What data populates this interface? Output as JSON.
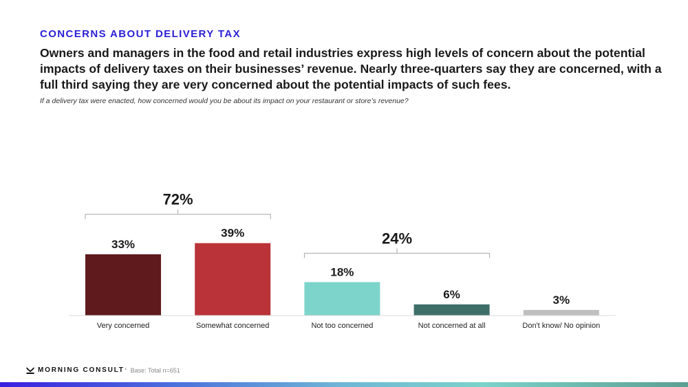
{
  "kicker": "CONCERNS ABOUT DELIVERY TAX",
  "headline": "Owners and managers in the food and retail industries express high levels of concern about the potential impacts of delivery taxes on their businesses’ revenue. Nearly three-quarters say they are concerned, with a full third saying they are very concerned about the potential impacts of such fees.",
  "question": "If a delivery tax were enacted, how concerned would you be about its impact on your restaurant or store’s revenue?",
  "footer": {
    "logo_text": "MORNING CONSULT",
    "logo_tm": "*",
    "base": "Base: Total n=651"
  },
  "chart_data": {
    "type": "bar",
    "title": "",
    "xlabel": "",
    "ylabel": "",
    "ylim": [
      0,
      45
    ],
    "grid": false,
    "categories": [
      "Very concerned",
      "Somewhat concerned",
      "Not too concerned",
      "Not concerned at all",
      "Don't know/ No opinion"
    ],
    "values": [
      33,
      39,
      18,
      6,
      3
    ],
    "data_labels": [
      "33%",
      "39%",
      "18%",
      "6%",
      "3%"
    ],
    "colors": [
      "#5e1a1d",
      "#b93338",
      "#7dd4cb",
      "#3e6e68",
      "#bfbfbf"
    ],
    "groups": [
      {
        "label": "72%",
        "value": 72,
        "spans": [
          0,
          1
        ]
      },
      {
        "label": "24%",
        "value": 24,
        "spans": [
          2,
          3
        ]
      }
    ]
  }
}
